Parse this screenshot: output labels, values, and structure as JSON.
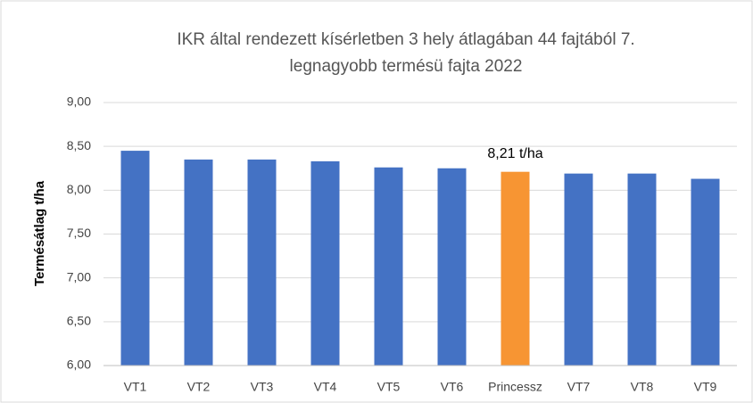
{
  "chart_data": {
    "type": "bar",
    "title": [
      "IKR által rendezett kísérletben 3 hely átlagában 44 fajtából 7.",
      "legnagyobb termésü fajta 2022"
    ],
    "y_label": "Termésátlag t/ha",
    "categories": [
      "VT1",
      "VT2",
      "VT3",
      "VT4",
      "VT5",
      "VT6",
      "Princessz",
      "VT7",
      "VT8",
      "VT9"
    ],
    "values": [
      8.45,
      8.35,
      8.35,
      8.33,
      8.26,
      8.25,
      8.21,
      8.19,
      8.19,
      8.13
    ],
    "value_labels": [
      null,
      null,
      null,
      null,
      null,
      null,
      "8,21 t/ha",
      null,
      null,
      null
    ],
    "colors": [
      "#4472c4",
      "#4472c4",
      "#4472c4",
      "#4472c4",
      "#4472c4",
      "#4472c4",
      "#f79533",
      "#4472c4",
      "#4472c4",
      "#4472c4"
    ],
    "ylim": [
      6,
      9
    ],
    "yticks": [
      {
        "value": 6,
        "label": "6,00"
      },
      {
        "value": 6.5,
        "label": "6,50"
      },
      {
        "value": 7,
        "label": "7,00"
      },
      {
        "value": 7.5,
        "label": "7,50"
      },
      {
        "value": 8,
        "label": "8,00"
      },
      {
        "value": 8.5,
        "label": "8,50"
      },
      {
        "value": 9,
        "label": "9,00"
      }
    ],
    "grid": true
  }
}
